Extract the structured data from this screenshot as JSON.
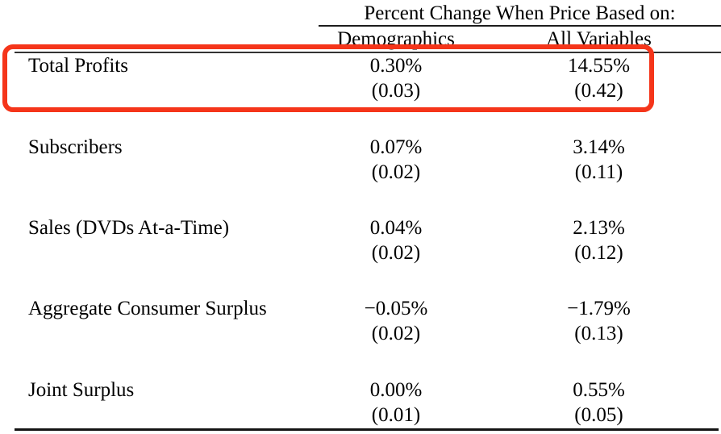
{
  "table": {
    "group_header": "Percent Change When Price Based on:",
    "column_headers": {
      "demographics": "Demographics",
      "all_variables": "All Variables"
    },
    "rows": [
      {
        "label": "Total Profits",
        "demographics_value": "0.30%",
        "demographics_se": "(0.03)",
        "all_variables_value": "14.55%",
        "all_variables_se": "(0.42)",
        "highlighted": true
      },
      {
        "label": "Subscribers",
        "demographics_value": "0.07%",
        "demographics_se": "(0.02)",
        "all_variables_value": "3.14%",
        "all_variables_se": "(0.11)",
        "highlighted": false
      },
      {
        "label": "Sales (DVDs At-a-Time)",
        "demographics_value": "0.04%",
        "demographics_se": "(0.02)",
        "all_variables_value": "2.13%",
        "all_variables_se": "(0.12)",
        "highlighted": false
      },
      {
        "label": "Aggregate Consumer Surplus",
        "demographics_value": "−0.05%",
        "demographics_se": "(0.02)",
        "all_variables_value": "−1.79%",
        "all_variables_se": "(0.13)",
        "highlighted": false
      },
      {
        "label": "Joint Surplus",
        "demographics_value": "0.00%",
        "demographics_se": "(0.01)",
        "all_variables_value": "0.55%",
        "all_variables_se": "(0.05)",
        "highlighted": false
      }
    ],
    "annotation": {
      "type": "highlight-box",
      "target_row": "Total Profits",
      "color": "#f5351a"
    }
  }
}
